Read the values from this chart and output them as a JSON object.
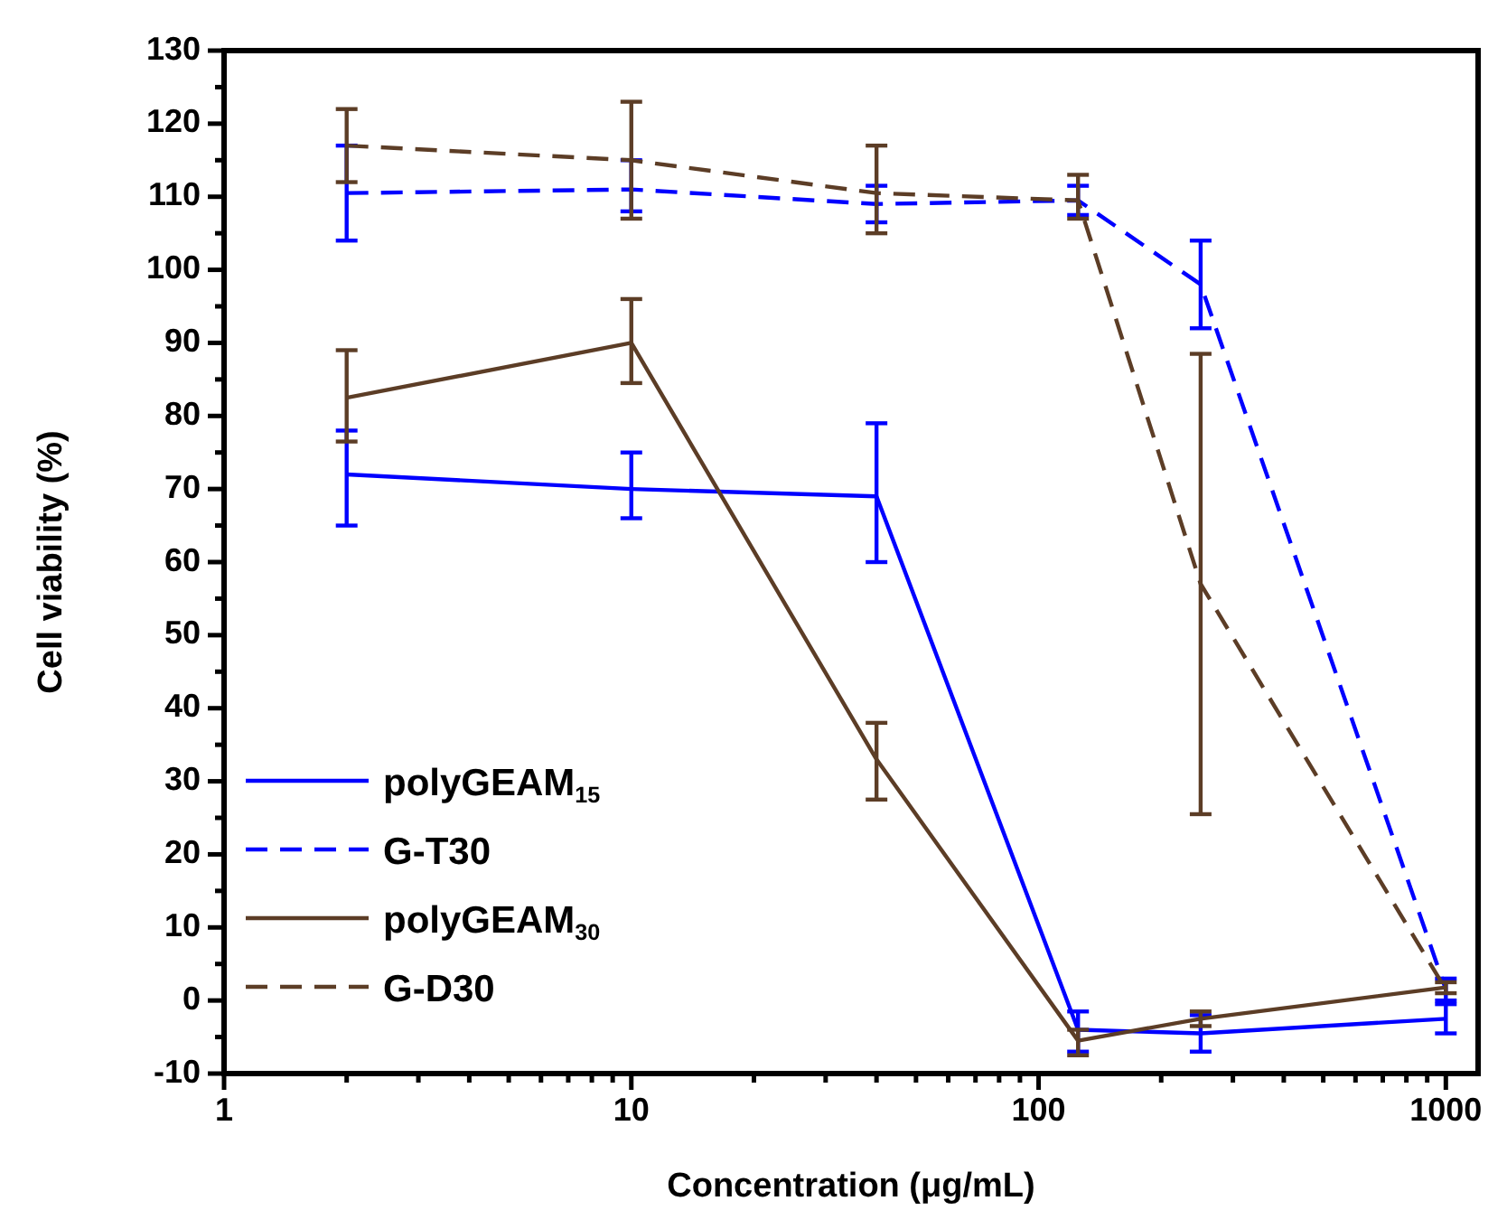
{
  "chart_data": {
    "type": "line",
    "xlabel": "Concentration (μg/mL)",
    "ylabel": "Cell viability (%)",
    "log": "x",
    "xlim": [
      1,
      1200
    ],
    "ylim": [
      -10,
      130
    ],
    "xticks": [
      1,
      {
        "value": 2,
        "label": null
      },
      {
        "value": 3,
        "label": null
      },
      {
        "value": 4,
        "label": null
      },
      {
        "value": 5,
        "label": null
      },
      {
        "value": 6,
        "label": null
      },
      {
        "value": 7,
        "label": null
      },
      {
        "value": 8,
        "label": null
      },
      {
        "value": 9,
        "label": null
      },
      10,
      {
        "value": 20,
        "label": null
      },
      {
        "value": 30,
        "label": null
      },
      {
        "value": 40,
        "label": null
      },
      {
        "value": 50,
        "label": null
      },
      {
        "value": 60,
        "label": null
      },
      {
        "value": 70,
        "label": null
      },
      {
        "value": 80,
        "label": null
      },
      {
        "value": 90,
        "label": null
      },
      100,
      {
        "value": 200,
        "label": null
      },
      {
        "value": 300,
        "label": null
      },
      {
        "value": 400,
        "label": null
      },
      {
        "value": 500,
        "label": null
      },
      {
        "value": 600,
        "label": null
      },
      {
        "value": 700,
        "label": null
      },
      {
        "value": 800,
        "label": null
      },
      {
        "value": 900,
        "label": null
      },
      1000
    ],
    "yticks": [
      -10,
      {
        "value": -5,
        "label": null
      },
      0,
      {
        "value": 5,
        "label": null
      },
      10,
      {
        "value": 15,
        "label": null
      },
      20,
      {
        "value": 25,
        "label": null
      },
      30,
      {
        "value": 35,
        "label": null
      },
      40,
      {
        "value": 45,
        "label": null
      },
      50,
      {
        "value": 55,
        "label": null
      },
      60,
      {
        "value": 65,
        "label": null
      },
      70,
      {
        "value": 75,
        "label": null
      },
      80,
      {
        "value": 85,
        "label": null
      },
      90,
      {
        "value": 95,
        "label": null
      },
      100,
      {
        "value": 105,
        "label": null
      },
      110,
      {
        "value": 115,
        "label": null
      },
      120,
      {
        "value": 125,
        "label": null
      },
      130
    ],
    "x": [
      2,
      10,
      40,
      125,
      250,
      1000
    ],
    "grid": false,
    "legend": "bottom left",
    "marker": "none",
    "series": [
      {
        "name": "polyGEAM$_{15}$",
        "color": "#0000ff",
        "line_style": "solid",
        "values": [
          72,
          70,
          69,
          -4,
          -4.5,
          -2.5
        ],
        "errors": [
          [
            65,
            78
          ],
          [
            66,
            75
          ],
          [
            60,
            79
          ],
          [
            -7,
            -1.5
          ],
          [
            -7,
            -2
          ],
          [
            -4.5,
            -0.5
          ]
        ]
      },
      {
        "name": "G-T30",
        "color": "#0000ff",
        "line_style": "dashed",
        "values": [
          110.5,
          111,
          109,
          109.5,
          98,
          1.5
        ],
        "errors": [
          [
            104,
            117
          ],
          [
            108,
            115
          ],
          [
            106.5,
            111.5
          ],
          [
            107.5,
            111.5
          ],
          [
            92,
            104
          ],
          [
            0,
            3
          ]
        ]
      },
      {
        "name": "polyGEAM$_{30}$",
        "color": "#5c3d26",
        "line_style": "solid",
        "values": [
          82.5,
          90,
          33,
          -5.5,
          -2.5,
          1.8
        ],
        "errors": [
          [
            76.5,
            89
          ],
          [
            84.5,
            96
          ],
          [
            27.5,
            38
          ],
          [
            -7.5,
            -4
          ],
          [
            -3.5,
            -1.5
          ],
          [
            1,
            2.5
          ]
        ]
      },
      {
        "name": "G-D30",
        "color": "#5c3d26",
        "line_style": "dashed",
        "values": [
          117,
          115,
          110.5,
          109.5,
          57,
          1.5
        ],
        "errors": [
          [
            112,
            122
          ],
          [
            107,
            123
          ],
          [
            105,
            117
          ],
          [
            107,
            113
          ],
          [
            25.5,
            88.5
          ],
          null
        ]
      }
    ]
  }
}
